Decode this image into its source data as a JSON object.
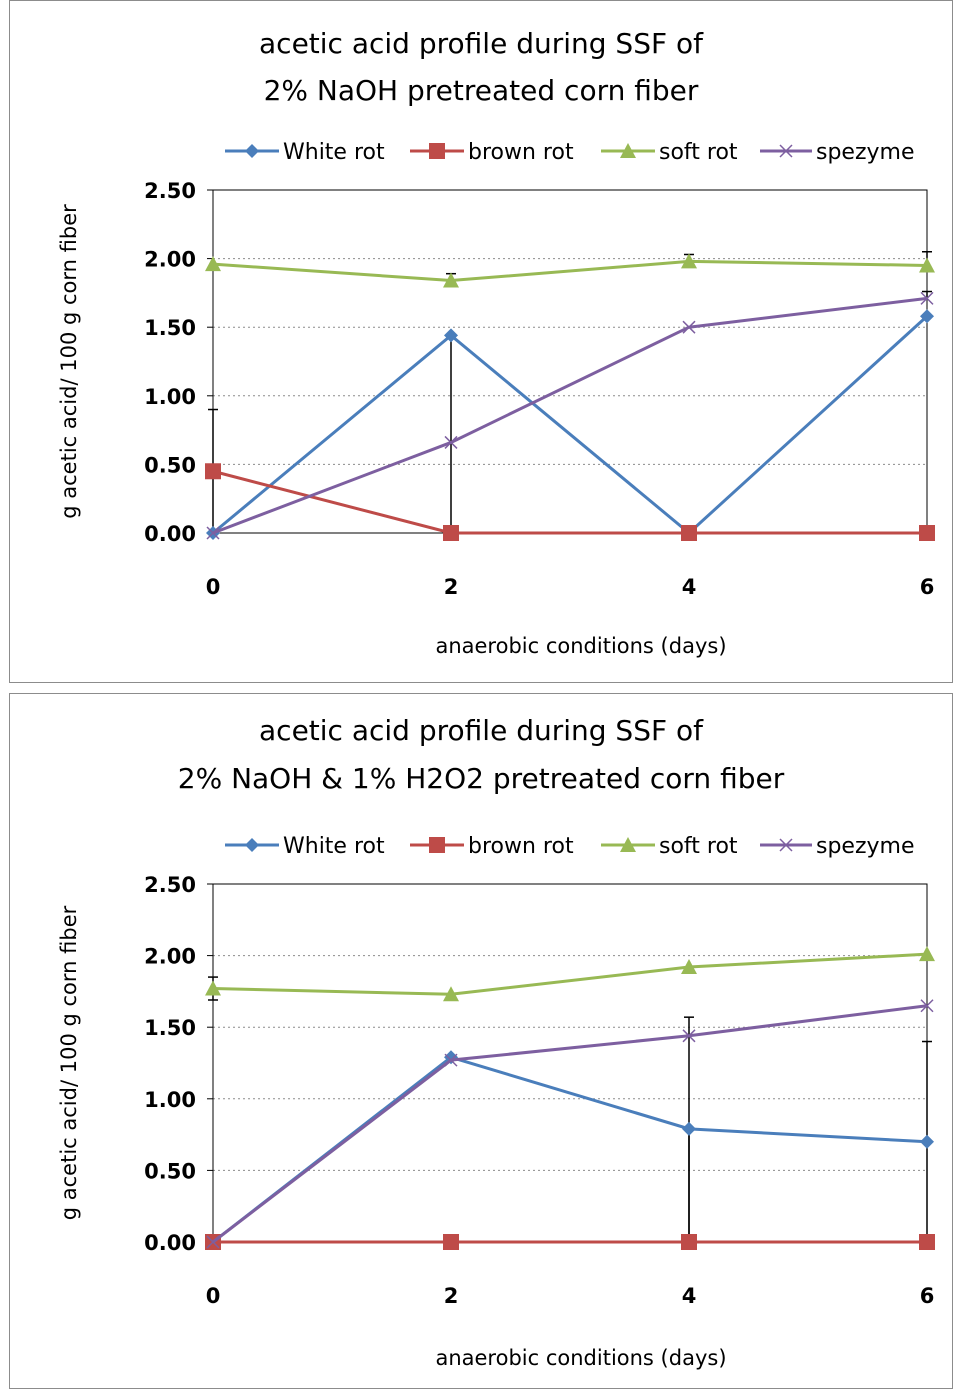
{
  "chart_data": [
    {
      "type": "line",
      "title_lines": [
        "acetic acid profile during SSF of",
        "2% NaOH pretreated corn fiber"
      ],
      "xlabel": "anaerobic conditions (days)",
      "ylabel": "g acetic acid/ 100 g corn fiber",
      "x": [
        0,
        2,
        4,
        6
      ],
      "x_ticks": [
        "0",
        "2",
        "4",
        "6"
      ],
      "ylim": [
        0,
        2.5
      ],
      "y_ticks": [
        "0.00",
        "0.50",
        "1.00",
        "1.50",
        "2.00",
        "2.50"
      ],
      "grid": "horizontal dotted",
      "legend_position": "top",
      "series": [
        {
          "name": "White rot",
          "color": "#4a7ebb",
          "marker": "diamond",
          "values": [
            0.0,
            1.44,
            0.0,
            1.58
          ],
          "error_upper": [
            0.0,
            0.0,
            0.0,
            0.0
          ],
          "error_lower": [
            0.0,
            1.44,
            0.0,
            0.0
          ]
        },
        {
          "name": "brown rot",
          "color": "#be4b48",
          "marker": "square",
          "values": [
            0.45,
            0.0,
            0.0,
            0.0
          ],
          "error_upper": [
            0.45,
            0.0,
            0.0,
            0.0
          ],
          "error_lower": [
            0.45,
            0.0,
            0.0,
            0.0
          ]
        },
        {
          "name": "soft rot",
          "color": "#98b954",
          "marker": "triangle",
          "values": [
            1.96,
            1.84,
            1.98,
            1.95
          ],
          "error_upper": [
            0.0,
            0.05,
            0.05,
            0.1
          ],
          "error_lower": [
            0.0,
            0.0,
            0.0,
            0.0
          ]
        },
        {
          "name": "spezyme",
          "color": "#7d5fa0",
          "marker": "x",
          "values": [
            0.0,
            0.66,
            1.5,
            1.71
          ],
          "error_upper": [
            0.0,
            0.0,
            0.0,
            0.05
          ],
          "error_lower": [
            0.0,
            0.0,
            0.0,
            0.0
          ]
        }
      ]
    },
    {
      "type": "line",
      "title_lines": [
        "acetic acid profile during SSF of",
        "2% NaOH & 1% H2O2 pretreated corn fiber"
      ],
      "xlabel": "anaerobic conditions (days)",
      "ylabel": "g acetic acid/ 100 g corn fiber",
      "x": [
        0,
        2,
        4,
        6
      ],
      "x_ticks": [
        "0",
        "2",
        "4",
        "6"
      ],
      "ylim": [
        0,
        2.5
      ],
      "y_ticks": [
        "0.00",
        "0.50",
        "1.00",
        "1.50",
        "2.00",
        "2.50"
      ],
      "grid": "horizontal dotted",
      "legend_position": "top",
      "series": [
        {
          "name": "White rot",
          "color": "#4a7ebb",
          "marker": "diamond",
          "values": [
            0.0,
            1.29,
            0.79,
            0.7
          ],
          "error_upper": [
            0.0,
            0.0,
            0.0,
            0.7
          ],
          "error_lower": [
            0.0,
            0.0,
            0.79,
            0.7
          ]
        },
        {
          "name": "brown rot",
          "color": "#be4b48",
          "marker": "square",
          "values": [
            0.0,
            0.0,
            0.0,
            0.0
          ],
          "error_upper": [
            0.0,
            0.0,
            0.0,
            0.0
          ],
          "error_lower": [
            0.0,
            0.0,
            0.0,
            0.0
          ]
        },
        {
          "name": "soft rot",
          "color": "#98b954",
          "marker": "triangle",
          "values": [
            1.77,
            1.73,
            1.92,
            2.01
          ],
          "error_upper": [
            0.08,
            0.0,
            0.0,
            0.0
          ],
          "error_lower": [
            0.08,
            0.0,
            0.0,
            0.0
          ]
        },
        {
          "name": "spezyme",
          "color": "#7d5fa0",
          "marker": "x",
          "values": [
            0.0,
            1.27,
            1.44,
            1.65
          ],
          "error_upper": [
            0.0,
            0.0,
            0.13,
            0.0
          ],
          "error_lower": [
            0.0,
            0.0,
            1.44,
            0.0
          ]
        }
      ]
    }
  ]
}
